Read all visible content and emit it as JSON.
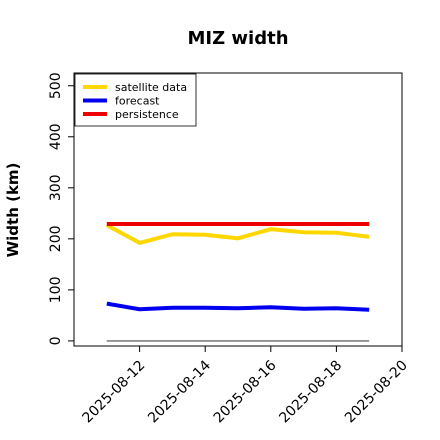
{
  "chart_data": {
    "type": "line",
    "title": "MIZ width",
    "xlabel": "",
    "ylabel": "Width (km)",
    "x_dates": [
      "2025-08-11",
      "2025-08-12",
      "2025-08-13",
      "2025-08-14",
      "2025-08-15",
      "2025-08-16",
      "2025-08-17",
      "2025-08-18",
      "2025-08-19"
    ],
    "xlim": [
      "2025-08-10",
      "2025-08-20"
    ],
    "x_ticks": [
      "2025-08-12",
      "2025-08-14",
      "2025-08-16",
      "2025-08-18",
      "2025-08-20"
    ],
    "x_tick_colors": [
      "#228b22",
      "#000000",
      "#000000",
      "#000000",
      "#000000"
    ],
    "ylim": [
      -10,
      525
    ],
    "y_ticks": [
      0,
      100,
      200,
      300,
      400,
      500
    ],
    "grid": false,
    "legend_position": "top-left",
    "series": [
      {
        "name": "satellite data",
        "color": "#ffd700",
        "values": [
          227,
          192,
          209,
          208,
          201,
          219,
          213,
          212,
          204
        ]
      },
      {
        "name": "forecast",
        "color": "#0000ee",
        "values": [
          73,
          62,
          65,
          65,
          64,
          66,
          63,
          64,
          61
        ]
      },
      {
        "name": "persistence",
        "color": "#ee0000",
        "values": [
          229,
          229,
          229,
          229,
          229,
          229,
          229,
          229,
          229
        ]
      }
    ],
    "reference_line": {
      "color": "#808080",
      "values": [
        0,
        0,
        0,
        0,
        0,
        0,
        0,
        0,
        0
      ]
    }
  }
}
